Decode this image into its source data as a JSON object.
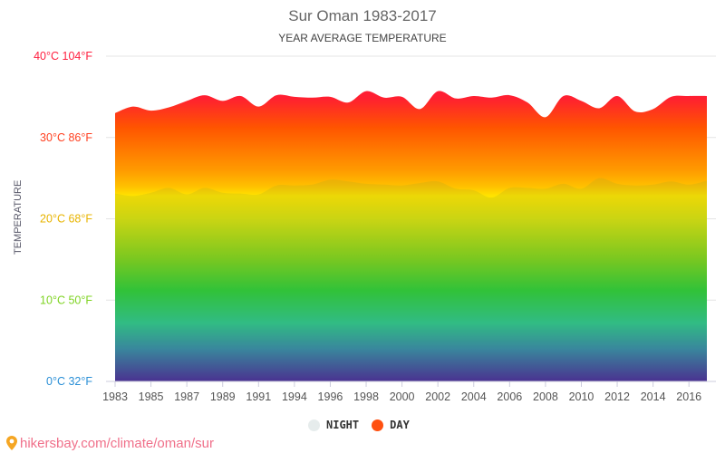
{
  "chart_data": {
    "type": "area",
    "title": "Sur Oman 1983-2017",
    "subtitle": "YEAR AVERAGE TEMPERATURE",
    "ylabel": "TEMPERATURE",
    "ylim": [
      0,
      40
    ],
    "y_ticks": [
      {
        "value": 0,
        "label": "0°C 32°F",
        "color": "#2a8fd6"
      },
      {
        "value": 10,
        "label": "10°C 50°F",
        "color": "#7ed321"
      },
      {
        "value": 20,
        "label": "20°C 68°F",
        "color": "#e8b400"
      },
      {
        "value": 30,
        "label": "30°C 86°F",
        "color": "#ff4020"
      },
      {
        "value": 40,
        "label": "40°C 104°F",
        "color": "#ff2040"
      }
    ],
    "x_tick_labels": [
      "1983",
      "1985",
      "1987",
      "1989",
      "1991",
      "1994",
      "1996",
      "1998",
      "2000",
      "2002",
      "2004",
      "2006",
      "2008",
      "2010",
      "2012",
      "2014",
      "2016"
    ],
    "x_tick_every": 2,
    "point_count": 34,
    "series": [
      {
        "name": "NIGHT",
        "color": "#e6ecec",
        "values": [
          23.1,
          22.8,
          23.2,
          23.8,
          23.0,
          23.8,
          23.2,
          23.1,
          23.0,
          24.1,
          24.1,
          24.2,
          24.8,
          24.6,
          24.3,
          24.2,
          24.1,
          24.4,
          24.6,
          23.7,
          23.5,
          22.6,
          23.8,
          23.8,
          23.7,
          24.3,
          23.7,
          25.0,
          24.3,
          24.1,
          24.2,
          24.6,
          24.2,
          24.7
        ]
      },
      {
        "name": "DAY",
        "color": "#ff5010",
        "values": [
          33.0,
          33.8,
          33.3,
          33.7,
          34.5,
          35.2,
          34.5,
          35.1,
          33.8,
          35.2,
          35.0,
          34.9,
          35.0,
          34.3,
          35.7,
          34.9,
          35.0,
          33.5,
          35.7,
          34.8,
          35.1,
          34.9,
          35.2,
          34.3,
          32.5,
          35.1,
          34.5,
          33.6,
          35.1,
          33.2,
          33.5,
          35.0,
          35.1,
          35.1
        ]
      }
    ],
    "legend_position": "bottom-center",
    "grid": true
  },
  "source": {
    "text": "hikersbay.com/climate/oman/sur",
    "icon": "map-pin-icon"
  }
}
